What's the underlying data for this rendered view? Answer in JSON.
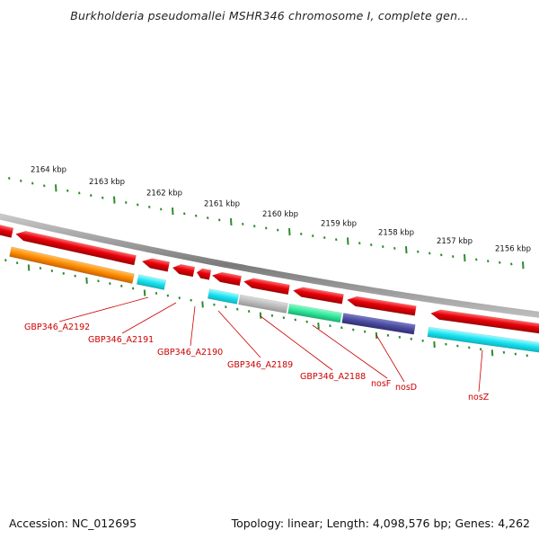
{
  "title": "Burkholderia pseudomallei MSHR346 chromosome I, complete gen...",
  "accession_text": "Accession: NC_012695",
  "topology_text": "Topology: linear; Length: 4,098,576 bp; Genes: 4,262",
  "colors": {
    "backbone": "#8a8a8a",
    "tick": "#2e8b2e",
    "gene_red": "#e8000a",
    "orange": "#ff8c00",
    "cyan": "#19e3f0",
    "gray": "#b0b0b0",
    "green": "#2ee89a",
    "navy": "#4b4ca0",
    "label": "#cc0000"
  },
  "scale_labels": [
    "2164 kbp",
    "2163 kbp",
    "2162 kbp",
    "2161 kbp",
    "2160 kbp",
    "2159 kbp",
    "2158 kbp",
    "2157 kbp",
    "2156 kbp"
  ],
  "gene_labels": [
    "GBP346_A2192",
    "GBP346_A2191",
    "GBP346_A2190",
    "GBP346_A2189",
    "GBP346_A2188",
    "nosF",
    "nosD",
    "nosZ"
  ]
}
